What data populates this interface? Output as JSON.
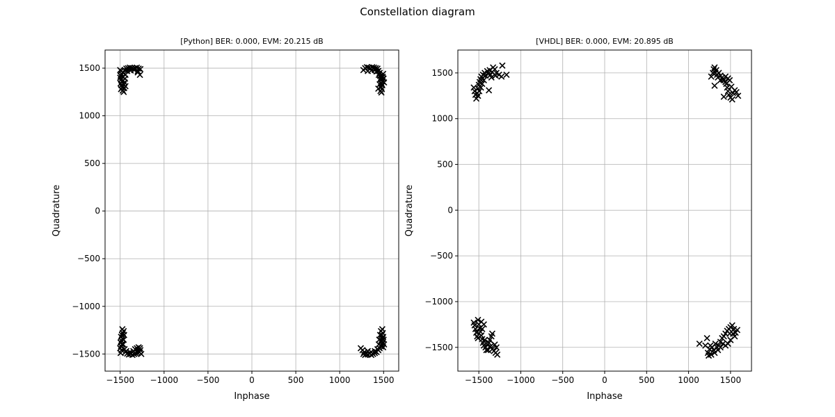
{
  "figure_title": "Constellation diagram",
  "chart_data": [
    {
      "type": "scatter",
      "title": "[Python] BER: 0.000, EVM: 20.215 dB",
      "xlabel": "Inphase",
      "ylabel": "Quadrature",
      "xlim": [
        -1672,
        1672
      ],
      "ylim": [
        -1680,
        1690
      ],
      "xticks": [
        -1500,
        -1000,
        -500,
        0,
        500,
        1000,
        1500
      ],
      "yticks": [
        -1500,
        -1000,
        -500,
        0,
        500,
        1000,
        1500
      ],
      "xtick_labels": [
        "−1500",
        "−1000",
        "−500",
        "0",
        "500",
        "1000",
        "1500"
      ],
      "ytick_labels": [
        "−1500",
        "−1000",
        "−500",
        "0",
        "500",
        "1000",
        "1500"
      ],
      "grid": true,
      "marker": "x",
      "marker_color": "#000000",
      "points": [
        [
          -1500,
          1480
        ],
        [
          -1490,
          1470
        ],
        [
          -1485,
          1440
        ],
        [
          -1495,
          1420
        ],
        [
          -1500,
          1400
        ],
        [
          -1490,
          1380
        ],
        [
          -1480,
          1360
        ],
        [
          -1495,
          1340
        ],
        [
          -1485,
          1320
        ],
        [
          -1475,
          1300
        ],
        [
          -1490,
          1280
        ],
        [
          -1470,
          1265
        ],
        [
          -1460,
          1250
        ],
        [
          -1455,
          1290
        ],
        [
          -1460,
          1330
        ],
        [
          -1465,
          1370
        ],
        [
          -1470,
          1410
        ],
        [
          -1465,
          1450
        ],
        [
          -1450,
          1480
        ],
        [
          -1430,
          1495
        ],
        [
          -1410,
          1500
        ],
        [
          -1390,
          1505
        ],
        [
          -1370,
          1500
        ],
        [
          -1350,
          1495
        ],
        [
          -1330,
          1500
        ],
        [
          -1310,
          1505
        ],
        [
          -1290,
          1495
        ],
        [
          -1270,
          1490
        ],
        [
          -1300,
          1470
        ],
        [
          -1340,
          1480
        ],
        [
          -1380,
          1475
        ],
        [
          -1420,
          1470
        ],
        [
          -1440,
          1430
        ],
        [
          -1445,
          1390
        ],
        [
          -1450,
          1350
        ],
        [
          -1440,
          1310
        ],
        [
          -1275,
          1430
        ],
        [
          -1300,
          1455
        ],
        [
          1270,
          1480
        ],
        [
          1290,
          1500
        ],
        [
          1310,
          1510
        ],
        [
          1330,
          1505
        ],
        [
          1350,
          1500
        ],
        [
          1370,
          1510
        ],
        [
          1390,
          1505
        ],
        [
          1410,
          1500
        ],
        [
          1430,
          1495
        ],
        [
          1440,
          1470
        ],
        [
          1455,
          1450
        ],
        [
          1460,
          1420
        ],
        [
          1470,
          1400
        ],
        [
          1480,
          1380
        ],
        [
          1490,
          1360
        ],
        [
          1475,
          1340
        ],
        [
          1485,
          1320
        ],
        [
          1470,
          1300
        ],
        [
          1480,
          1280
        ],
        [
          1465,
          1260
        ],
        [
          1475,
          1245
        ],
        [
          1440,
          1285
        ],
        [
          1455,
          1330
        ],
        [
          1460,
          1380
        ],
        [
          1445,
          1430
        ],
        [
          1420,
          1465
        ],
        [
          1400,
          1480
        ],
        [
          1360,
          1475
        ],
        [
          1320,
          1470
        ],
        [
          1490,
          1410
        ],
        [
          1495,
          1440
        ],
        [
          1500,
          1390
        ],
        [
          1505,
          1350
        ],
        [
          -1495,
          -1490
        ],
        [
          -1485,
          -1460
        ],
        [
          -1500,
          -1440
        ],
        [
          -1490,
          -1420
        ],
        [
          -1480,
          -1400
        ],
        [
          -1495,
          -1380
        ],
        [
          -1485,
          -1360
        ],
        [
          -1475,
          -1340
        ],
        [
          -1490,
          -1320
        ],
        [
          -1480,
          -1300
        ],
        [
          -1470,
          -1280
        ],
        [
          -1460,
          -1260
        ],
        [
          -1475,
          -1240
        ],
        [
          -1455,
          -1300
        ],
        [
          -1460,
          -1350
        ],
        [
          -1465,
          -1400
        ],
        [
          -1450,
          -1450
        ],
        [
          -1440,
          -1480
        ],
        [
          -1420,
          -1495
        ],
        [
          -1400,
          -1505
        ],
        [
          -1380,
          -1500
        ],
        [
          -1360,
          -1510
        ],
        [
          -1340,
          -1500
        ],
        [
          -1320,
          -1495
        ],
        [
          -1300,
          -1490
        ],
        [
          -1280,
          -1480
        ],
        [
          -1270,
          -1460
        ],
        [
          -1275,
          -1440
        ],
        [
          -1290,
          -1430
        ],
        [
          -1310,
          -1440
        ],
        [
          -1350,
          -1470
        ],
        [
          -1390,
          -1480
        ],
        [
          -1430,
          -1470
        ],
        [
          -1300,
          -1465
        ],
        [
          -1330,
          -1450
        ],
        [
          -1260,
          -1500
        ],
        [
          1240,
          -1440
        ],
        [
          1260,
          -1460
        ],
        [
          1280,
          -1480
        ],
        [
          1300,
          -1500
        ],
        [
          1320,
          -1505
        ],
        [
          1340,
          -1495
        ],
        [
          1360,
          -1510
        ],
        [
          1380,
          -1500
        ],
        [
          1400,
          -1490
        ],
        [
          1420,
          -1480
        ],
        [
          1440,
          -1460
        ],
        [
          1455,
          -1440
        ],
        [
          1470,
          -1420
        ],
        [
          1480,
          -1400
        ],
        [
          1490,
          -1380
        ],
        [
          1475,
          -1360
        ],
        [
          1485,
          -1340
        ],
        [
          1495,
          -1320
        ],
        [
          1480,
          -1300
        ],
        [
          1490,
          -1280
        ],
        [
          1470,
          -1260
        ],
        [
          1485,
          -1240
        ],
        [
          1460,
          -1300
        ],
        [
          1450,
          -1350
        ],
        [
          1445,
          -1400
        ],
        [
          1430,
          -1450
        ],
        [
          1400,
          -1470
        ],
        [
          1360,
          -1480
        ],
        [
          1320,
          -1470
        ],
        [
          1500,
          -1350
        ],
        [
          1505,
          -1400
        ],
        [
          1495,
          -1430
        ],
        [
          1270,
          -1500
        ],
        [
          1290,
          -1510
        ]
      ]
    },
    {
      "type": "scatter",
      "title": "[VHDL] BER: 0.000, EVM: 20.895 dB",
      "xlabel": "Inphase",
      "ylabel": "Quadrature",
      "xlim": [
        -1750,
        1750
      ],
      "ylim": [
        -1760,
        1750
      ],
      "xticks": [
        -1500,
        -1000,
        -500,
        0,
        500,
        1000,
        1500
      ],
      "yticks": [
        -1500,
        -1000,
        -500,
        0,
        500,
        1000,
        1500
      ],
      "xtick_labels": [
        "−1500",
        "−1000",
        "−500",
        "0",
        "500",
        "1000",
        "1500"
      ],
      "ytick_labels": [
        "−1500",
        "−1000",
        "−500",
        "0",
        "500",
        "1000",
        "1500"
      ],
      "grid": true,
      "marker": "x",
      "marker_color": "#000000",
      "points": [
        [
          -1560,
          1340
        ],
        [
          -1550,
          1300
        ],
        [
          -1540,
          1260
        ],
        [
          -1530,
          1220
        ],
        [
          -1520,
          1280
        ],
        [
          -1510,
          1330
        ],
        [
          -1500,
          1370
        ],
        [
          -1490,
          1400
        ],
        [
          -1480,
          1430
        ],
        [
          -1470,
          1460
        ],
        [
          -1450,
          1480
        ],
        [
          -1430,
          1500
        ],
        [
          -1400,
          1520
        ],
        [
          -1370,
          1530
        ],
        [
          -1340,
          1510
        ],
        [
          -1310,
          1540
        ],
        [
          -1290,
          1500
        ],
        [
          -1260,
          1480
        ],
        [
          -1230,
          1460
        ],
        [
          -1220,
          1580
        ],
        [
          -1170,
          1480
        ],
        [
          -1330,
          1560
        ],
        [
          -1360,
          1480
        ],
        [
          -1390,
          1490
        ],
        [
          -1420,
          1470
        ],
        [
          -1440,
          1420
        ],
        [
          -1460,
          1380
        ],
        [
          -1475,
          1340
        ],
        [
          -1495,
          1300
        ],
        [
          -1510,
          1250
        ],
        [
          -1380,
          1310
        ],
        [
          -1350,
          1450
        ],
        [
          -1300,
          1470
        ],
        [
          1270,
          1460
        ],
        [
          1290,
          1500
        ],
        [
          1300,
          1540
        ],
        [
          1310,
          1560
        ],
        [
          1320,
          1500
        ],
        [
          1340,
          1480
        ],
        [
          1360,
          1500
        ],
        [
          1380,
          1470
        ],
        [
          1400,
          1450
        ],
        [
          1420,
          1420
        ],
        [
          1440,
          1400
        ],
        [
          1450,
          1380
        ],
        [
          1460,
          1340
        ],
        [
          1470,
          1300
        ],
        [
          1480,
          1260
        ],
        [
          1500,
          1230
        ],
        [
          1520,
          1210
        ],
        [
          1530,
          1280
        ],
        [
          1550,
          1310
        ],
        [
          1570,
          1290
        ],
        [
          1590,
          1250
        ],
        [
          1510,
          1350
        ],
        [
          1490,
          1420
        ],
        [
          1470,
          1440
        ],
        [
          1440,
          1460
        ],
        [
          1410,
          1430
        ],
        [
          1310,
          1360
        ],
        [
          1420,
          1240
        ],
        [
          1380,
          1420
        ],
        [
          1350,
          1450
        ],
        [
          1330,
          1530
        ],
        [
          -1560,
          -1230
        ],
        [
          -1550,
          -1260
        ],
        [
          -1540,
          -1300
        ],
        [
          -1530,
          -1340
        ],
        [
          -1520,
          -1380
        ],
        [
          -1510,
          -1200
        ],
        [
          -1500,
          -1250
        ],
        [
          -1490,
          -1290
        ],
        [
          -1480,
          -1330
        ],
        [
          -1470,
          -1370
        ],
        [
          -1460,
          -1410
        ],
        [
          -1450,
          -1450
        ],
        [
          -1440,
          -1480
        ],
        [
          -1420,
          -1500
        ],
        [
          -1400,
          -1470
        ],
        [
          -1380,
          -1450
        ],
        [
          -1360,
          -1490
        ],
        [
          -1340,
          -1520
        ],
        [
          -1320,
          -1540
        ],
        [
          -1300,
          -1560
        ],
        [
          -1280,
          -1580
        ],
        [
          -1370,
          -1420
        ],
        [
          -1350,
          -1380
        ],
        [
          -1340,
          -1350
        ],
        [
          -1290,
          -1500
        ],
        [
          -1310,
          -1470
        ],
        [
          -1430,
          -1420
        ],
        [
          -1410,
          -1530
        ],
        [
          -1390,
          -1530
        ],
        [
          -1520,
          -1330
        ],
        [
          -1510,
          -1400
        ],
        [
          -1460,
          -1300
        ],
        [
          -1440,
          -1250
        ],
        [
          -1470,
          -1220
        ],
        [
          1130,
          -1460
        ],
        [
          1200,
          -1480
        ],
        [
          1220,
          -1400
        ],
        [
          1230,
          -1560
        ],
        [
          1240,
          -1590
        ],
        [
          1250,
          -1520
        ],
        [
          1260,
          -1480
        ],
        [
          1270,
          -1580
        ],
        [
          1280,
          -1500
        ],
        [
          1300,
          -1530
        ],
        [
          1320,
          -1460
        ],
        [
          1340,
          -1500
        ],
        [
          1360,
          -1480
        ],
        [
          1380,
          -1440
        ],
        [
          1400,
          -1400
        ],
        [
          1420,
          -1380
        ],
        [
          1440,
          -1350
        ],
        [
          1460,
          -1320
        ],
        [
          1480,
          -1300
        ],
        [
          1500,
          -1280
        ],
        [
          1520,
          -1260
        ],
        [
          1540,
          -1300
        ],
        [
          1560,
          -1340
        ],
        [
          1580,
          -1310
        ],
        [
          1550,
          -1380
        ],
        [
          1500,
          -1420
        ],
        [
          1470,
          -1460
        ],
        [
          1440,
          -1480
        ],
        [
          1410,
          -1460
        ],
        [
          1380,
          -1500
        ],
        [
          1350,
          -1530
        ],
        [
          1310,
          -1560
        ],
        [
          1530,
          -1350
        ],
        [
          1490,
          -1350
        ]
      ]
    }
  ]
}
